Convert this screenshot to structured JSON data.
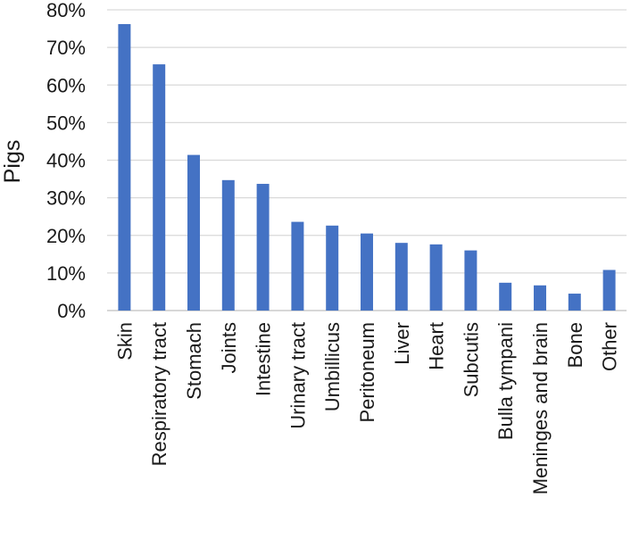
{
  "chart_data": {
    "type": "bar",
    "title": "",
    "xlabel": "",
    "ylabel": "Pigs",
    "ylim": [
      0,
      80
    ],
    "y_tick_step": 10,
    "y_tick_format": "percent",
    "grid": "horizontal",
    "legend": "none",
    "categories": [
      "Skin",
      "Respiratory tract",
      "Stomach",
      "Joints",
      "Intestine",
      "Urinary tract",
      "Umbillicus",
      "Peritoneum",
      "Liver",
      "Heart",
      "Subcutis",
      "Bulla tympani",
      "Meninges and brain",
      "Bone",
      "Other"
    ],
    "series": [
      {
        "values": [
          76.2,
          65.5,
          41.4,
          34.7,
          33.7,
          23.6,
          22.6,
          20.5,
          18.0,
          17.6,
          16.0,
          7.4,
          6.7,
          4.5,
          10.8
        ],
        "color": "#4472c4"
      }
    ],
    "y_ticks": [
      "0%",
      "10%",
      "20%",
      "30%",
      "40%",
      "50%",
      "60%",
      "70%",
      "80%"
    ]
  }
}
